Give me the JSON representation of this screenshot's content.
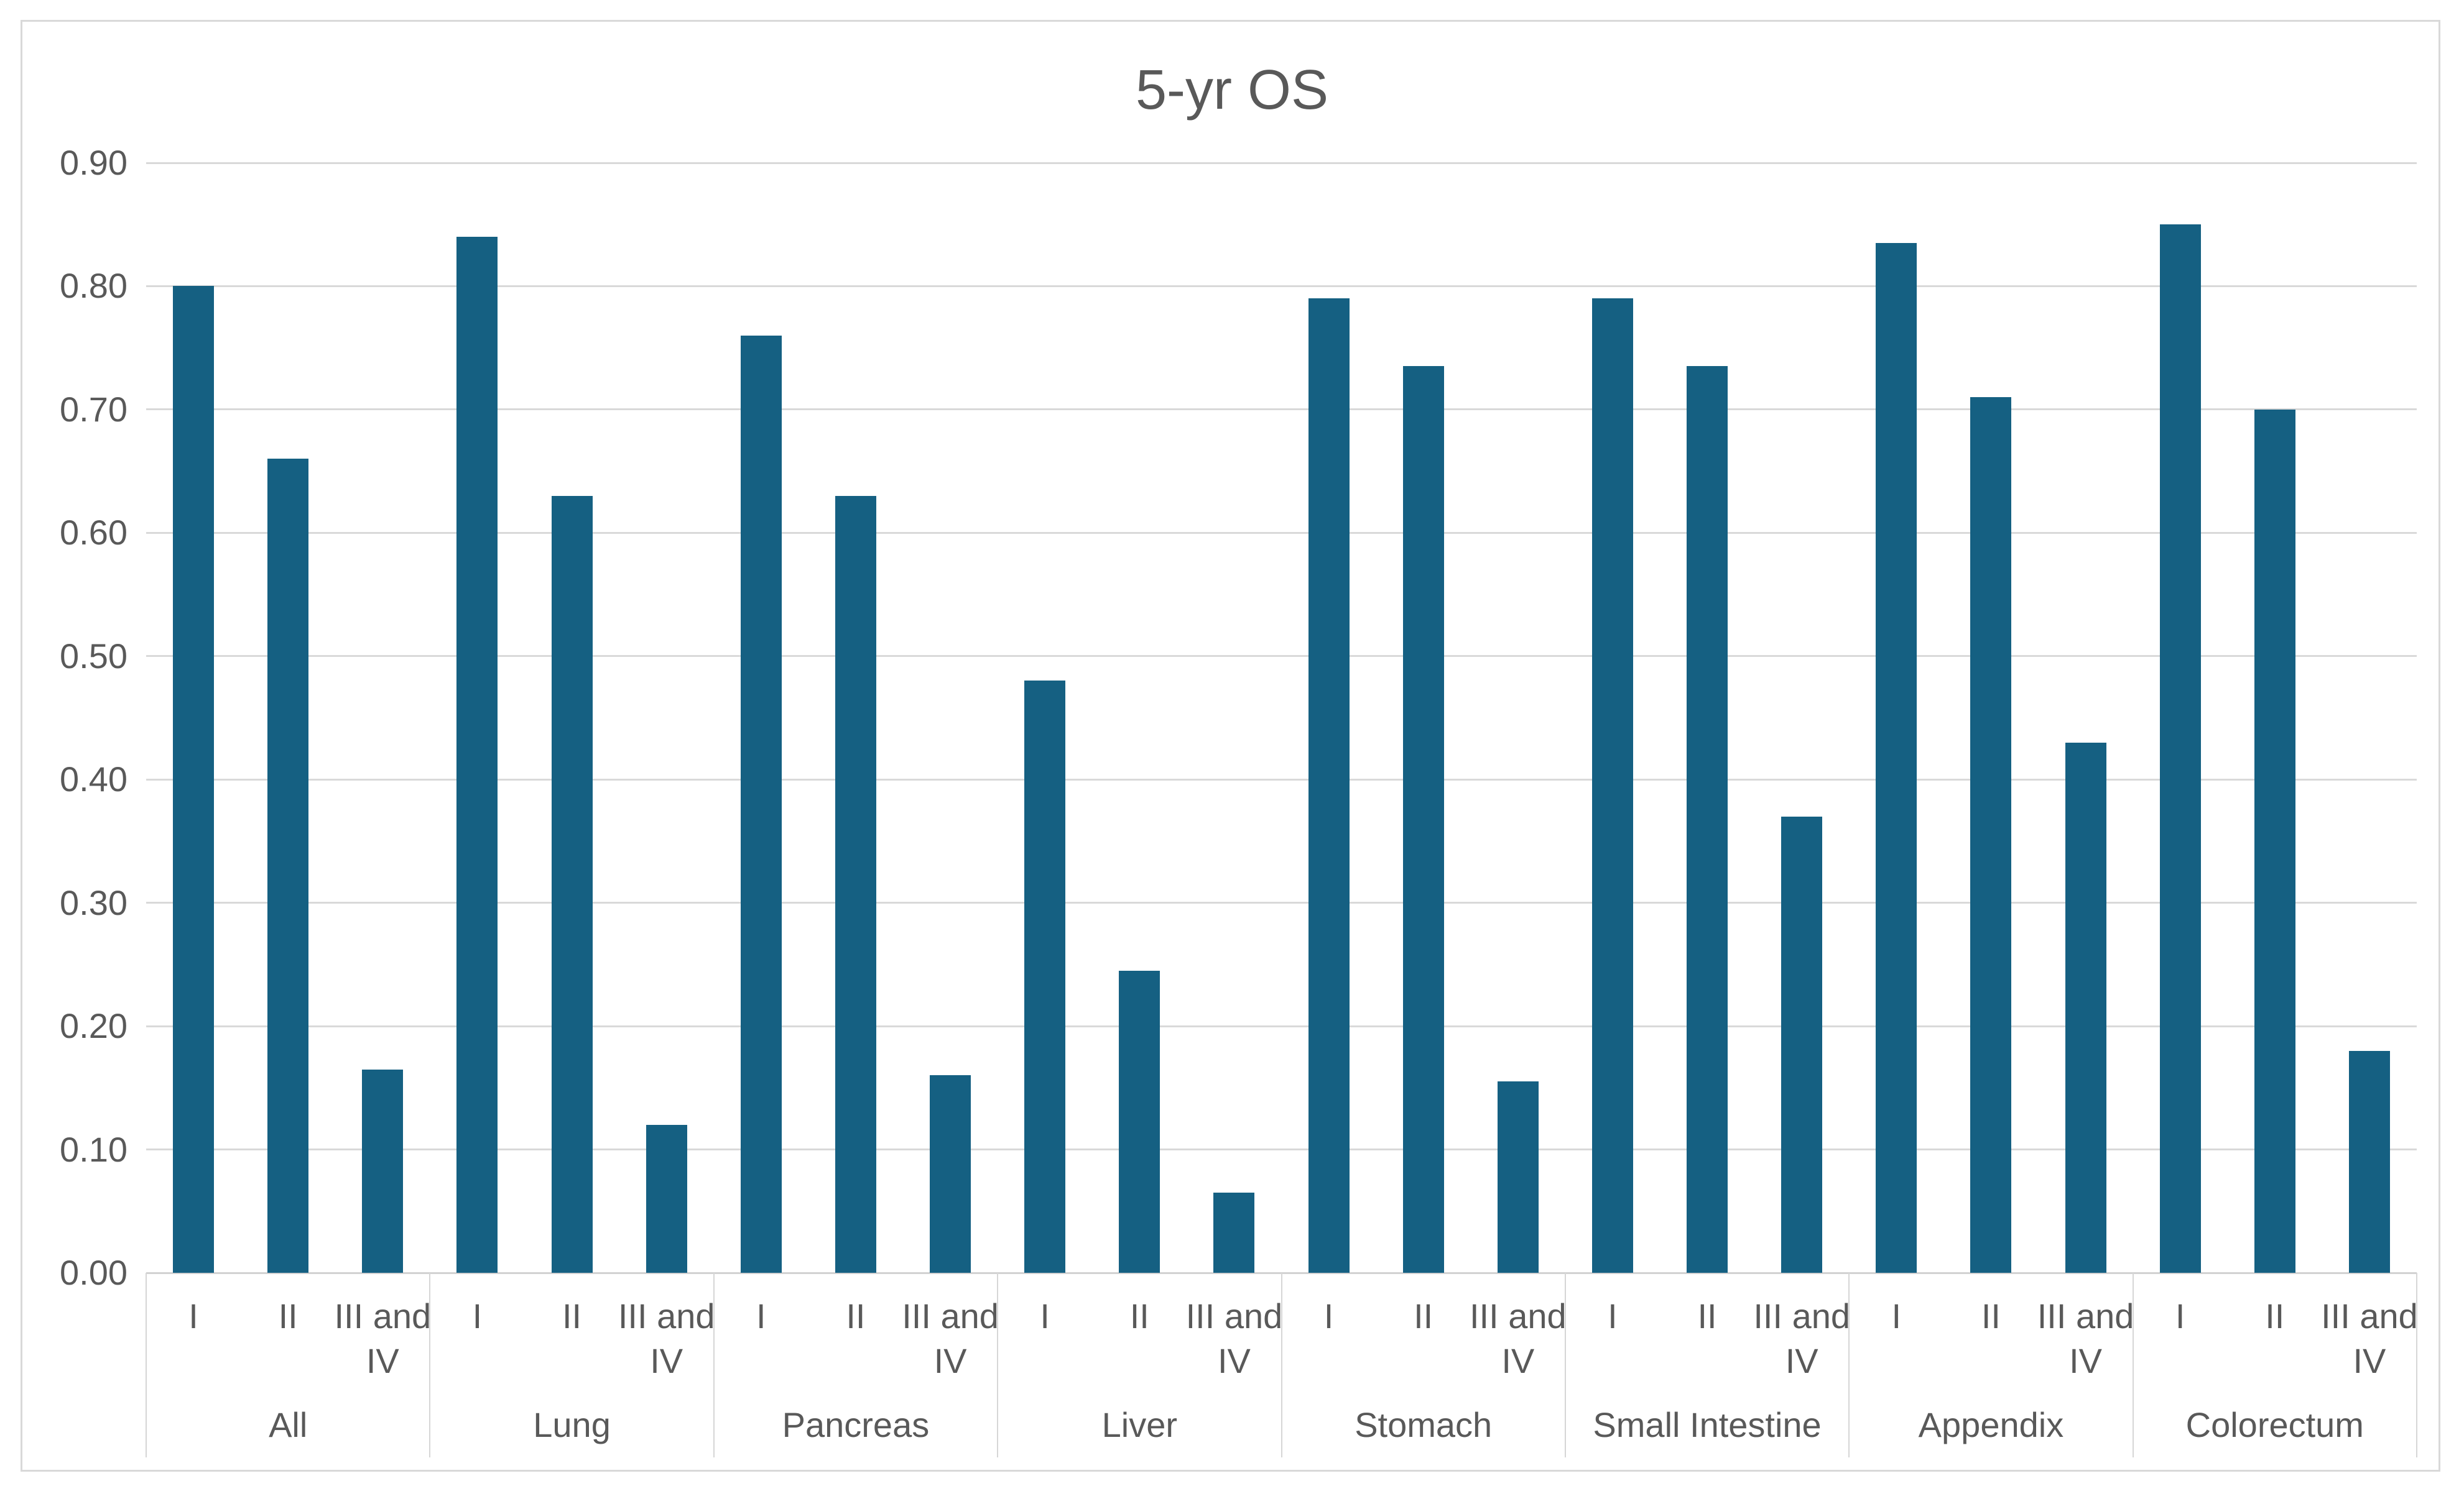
{
  "title": "5-yr OS",
  "colors": {
    "bar_fill": "#156082",
    "gridline": "#D9D9D9",
    "axis_text": "#595959",
    "chart_border": "#D9D9D9"
  },
  "chart_data": {
    "type": "bar",
    "title": "5-yr OS",
    "categories": [
      "All",
      "Lung",
      "Pancreas",
      "Liver",
      "Stomach",
      "Small Intestine",
      "Appendix",
      "Colorectum"
    ],
    "stage_labels": [
      "I",
      "II",
      "III and IV"
    ],
    "groups": [
      {
        "label": "All",
        "values": [
          0.8,
          0.66,
          0.165
        ]
      },
      {
        "label": "Lung",
        "values": [
          0.84,
          0.63,
          0.12
        ]
      },
      {
        "label": "Pancreas",
        "values": [
          0.76,
          0.63,
          0.16
        ]
      },
      {
        "label": "Liver",
        "values": [
          0.48,
          0.245,
          0.065
        ]
      },
      {
        "label": "Stomach",
        "values": [
          0.79,
          0.735,
          0.155
        ]
      },
      {
        "label": "Small Intestine",
        "values": [
          0.79,
          0.735,
          0.37
        ]
      },
      {
        "label": "Appendix",
        "values": [
          0.835,
          0.71,
          0.43
        ]
      },
      {
        "label": "Colorectum",
        "values": [
          0.85,
          0.7,
          0.18
        ]
      }
    ],
    "ylim": [
      0.0,
      0.9
    ],
    "ytick_step": 0.1,
    "ytick_labels": [
      "0.00",
      "0.10",
      "0.20",
      "0.30",
      "0.40",
      "0.50",
      "0.60",
      "0.70",
      "0.80",
      "0.90"
    ],
    "grid": true,
    "legend": "none",
    "bar_color": "#156082"
  }
}
